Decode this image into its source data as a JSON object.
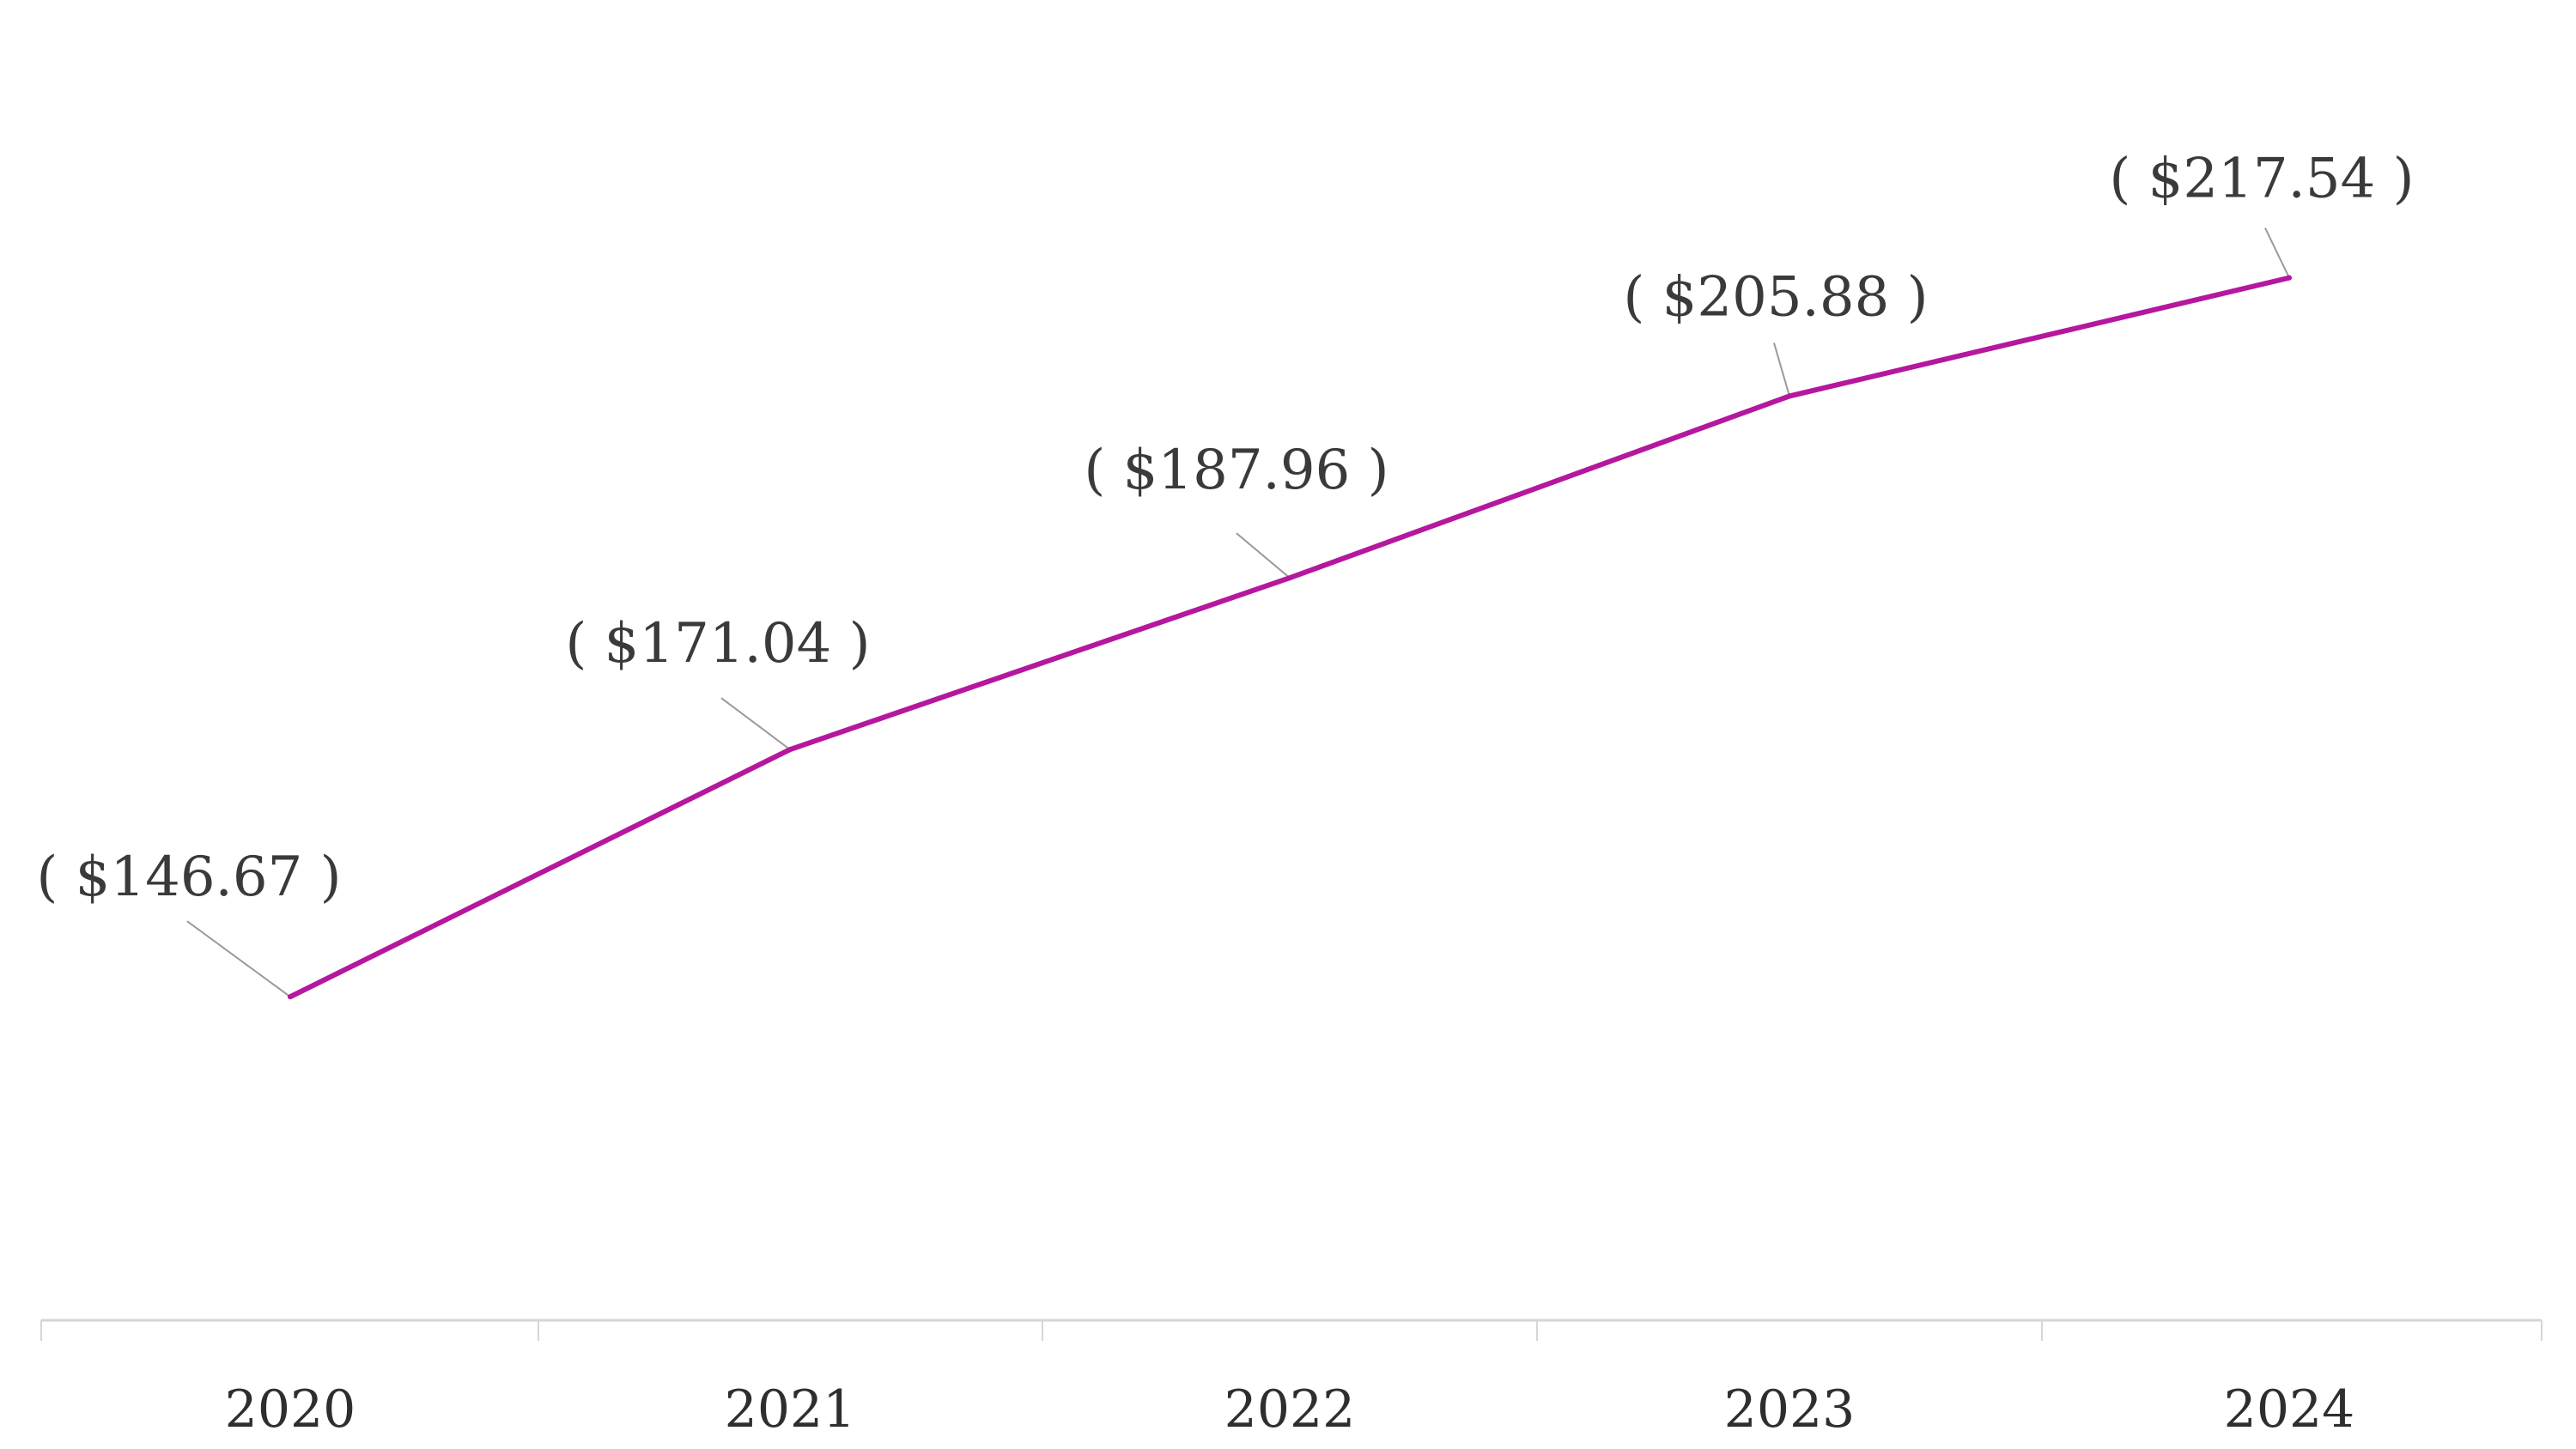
{
  "chart_data": {
    "type": "line",
    "title": "",
    "xlabel": "",
    "ylabel": "",
    "categories": [
      "2020",
      "2021",
      "2022",
      "2023",
      "2024"
    ],
    "series": [
      {
        "values": [
          146.67,
          171.04,
          187.96,
          205.88,
          217.54
        ]
      }
    ],
    "data_labels": [
      "( $146.67 )",
      "( $171.04 )",
      "( $187.96 )",
      "( $205.88 )",
      "( $217.54 )"
    ],
    "ylim": [
      118,
      228
    ],
    "grid": false,
    "legend": "none",
    "colors": {
      "line": "#b5179e",
      "leader": "#9a9a9a",
      "axis": "#d6d6d6",
      "text": "#3a3a3a"
    }
  }
}
